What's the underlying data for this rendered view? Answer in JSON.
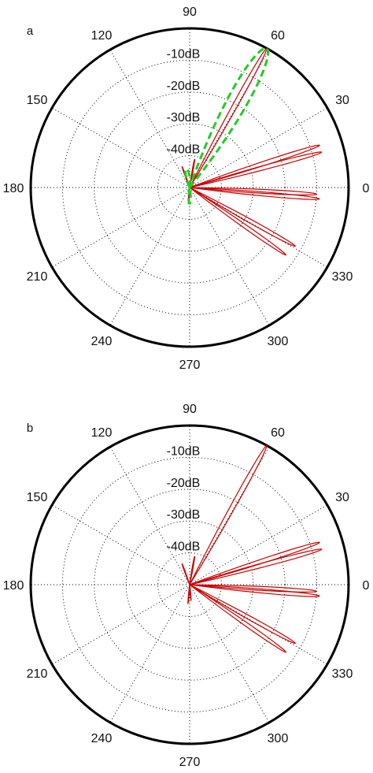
{
  "colors": {
    "frame": "#000000",
    "grid": "#000000",
    "pattern": "#cc0000",
    "envelope": "#22cc22"
  },
  "chart_data": [
    {
      "type": "polar",
      "panel_label": "a",
      "angle_labels": [
        "0",
        "30",
        "60",
        "90",
        "120",
        "150",
        "180",
        "210",
        "240",
        "270",
        "300",
        "330"
      ],
      "radial_labels": [
        "-10dB",
        "-20dB",
        "-30dB",
        "-40dB"
      ],
      "radial_unit": "dB",
      "rlim": [
        -50,
        0
      ],
      "grid": true,
      "series": [
        {
          "style": "solid",
          "lobes": [
            {
              "angle": 61,
              "level": 0
            },
            {
              "angle": 18,
              "level": -7
            },
            {
              "angle": 15,
              "level": -7
            },
            {
              "angle": -3,
              "level": -10
            },
            {
              "angle": -5,
              "level": -9
            },
            {
              "angle": -29,
              "level": -12
            },
            {
              "angle": -35,
              "level": -13
            },
            {
              "angle": 110,
              "level": -43
            },
            {
              "angle": 80,
              "level": -41
            },
            {
              "angle": 265,
              "level": -45
            }
          ]
        },
        {
          "style": "dashed",
          "lobes": [
            {
              "angle": 61,
              "level": 0,
              "width": 20
            },
            {
              "angle": 100,
              "level": -44,
              "width": 30
            },
            {
              "angle": 270,
              "level": -45,
              "width": 20
            }
          ]
        }
      ]
    },
    {
      "type": "polar",
      "panel_label": "b",
      "angle_labels": [
        "0",
        "30",
        "60",
        "90",
        "120",
        "150",
        "180",
        "210",
        "240",
        "270",
        "300",
        "330"
      ],
      "radial_labels": [
        "-10dB",
        "-20dB",
        "-30dB",
        "-40dB"
      ],
      "radial_unit": "dB",
      "rlim": [
        -50,
        0
      ],
      "grid": true,
      "series": [
        {
          "style": "solid",
          "lobes": [
            {
              "angle": 61,
              "level": 0
            },
            {
              "angle": 18,
              "level": -7
            },
            {
              "angle": 15,
              "level": -7
            },
            {
              "angle": -3,
              "level": -10
            },
            {
              "angle": -5,
              "level": -9
            },
            {
              "angle": -29,
              "level": -12
            },
            {
              "angle": -35,
              "level": -13
            },
            {
              "angle": 110,
              "level": -43
            },
            {
              "angle": 80,
              "level": -41
            },
            {
              "angle": 265,
              "level": -44
            },
            {
              "angle": 275,
              "level": -45
            }
          ]
        }
      ]
    }
  ]
}
